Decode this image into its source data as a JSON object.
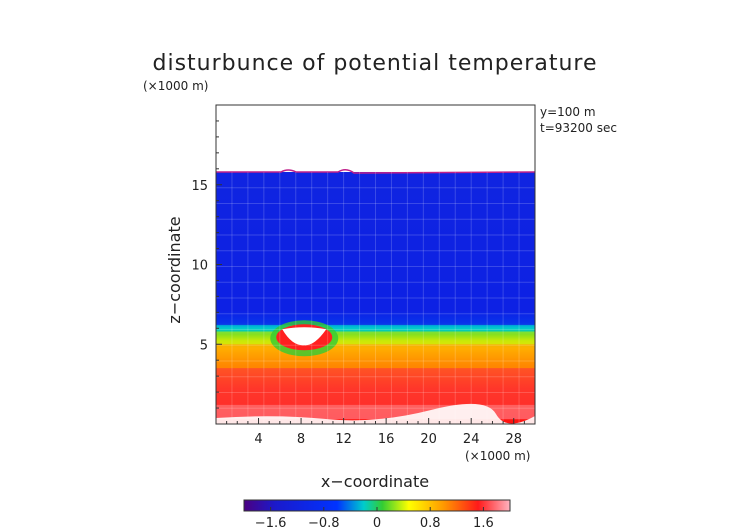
{
  "chart_data": {
    "type": "heatmap",
    "title": "disturbunce of potential temperature",
    "xlabel": "x−coordinate",
    "ylabel": "z−coordinate",
    "x_unit": "(×1000 m)",
    "y_unit": "(×1000 m)",
    "annotations": [
      "y=100 m",
      "t=93200 sec"
    ],
    "xlim": [
      0,
      30
    ],
    "ylim": [
      0,
      20
    ],
    "x_ticks": [
      4,
      8,
      12,
      16,
      20,
      24,
      28
    ],
    "y_ticks": [
      5,
      10,
      15
    ],
    "colorbar": {
      "range": [
        -2.0,
        2.0
      ],
      "ticks": [
        -1.6,
        -0.8,
        0,
        0.8,
        1.6
      ],
      "tick_labels": [
        "−1.6",
        "−0.8",
        "0",
        "0.8",
        "1.6"
      ]
    },
    "field_top_km": 15.8,
    "layers": [
      {
        "from_km": 6.2,
        "to_km": 15.8,
        "value": -1.4
      },
      {
        "from_km": 5.8,
        "to_km": 6.2,
        "value": -0.2
      },
      {
        "from_km": 5.0,
        "to_km": 5.8,
        "value": 0.4
      },
      {
        "from_km": 3.5,
        "to_km": 5.0,
        "value": 1.0
      },
      {
        "from_km": 1.2,
        "to_km": 3.5,
        "value": 1.6
      },
      {
        "from_km": 0.3,
        "to_km": 1.2,
        "value": 1.9
      }
    ],
    "feature": {
      "x_km": 8.3,
      "z_km": 5.5,
      "value": 2.0
    }
  }
}
